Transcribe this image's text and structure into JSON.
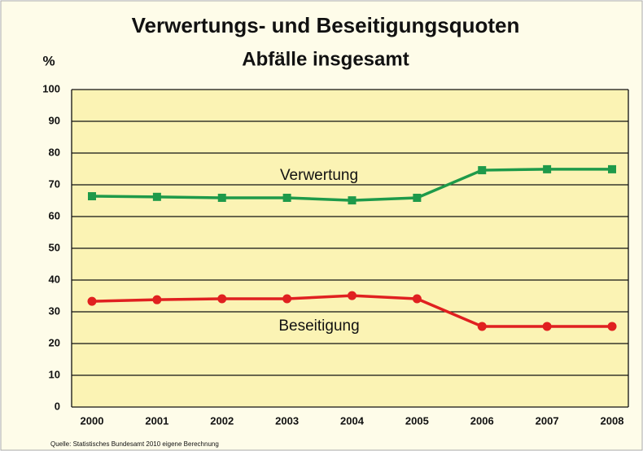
{
  "chart_data": {
    "type": "line",
    "title": "Verwertungs- und Beseitigungsquoten",
    "subtitle": "Abfälle insgesamt",
    "y_label": "%",
    "source": "Quelle: Statistisches Bundesamt 2010 eigene Berechnung",
    "categories": [
      "2000",
      "2001",
      "2002",
      "2003",
      "2004",
      "2005",
      "2006",
      "2007",
      "2008"
    ],
    "series": [
      {
        "name": "Verwertung",
        "color": "#1e9a4a",
        "marker": "square",
        "values": [
          66.4,
          66.2,
          65.9,
          65.9,
          65.1,
          65.9,
          74.6,
          74.9,
          74.9
        ]
      },
      {
        "name": "Beseitigung",
        "color": "#e02020",
        "marker": "circle",
        "values": [
          33.3,
          33.8,
          34.1,
          34.1,
          35.1,
          34.1,
          25.4,
          25.4,
          25.4
        ]
      }
    ],
    "ylim": [
      0,
      100
    ],
    "yticks": [
      0,
      10,
      20,
      30,
      40,
      50,
      60,
      70,
      80,
      90,
      100
    ],
    "grid": true
  }
}
